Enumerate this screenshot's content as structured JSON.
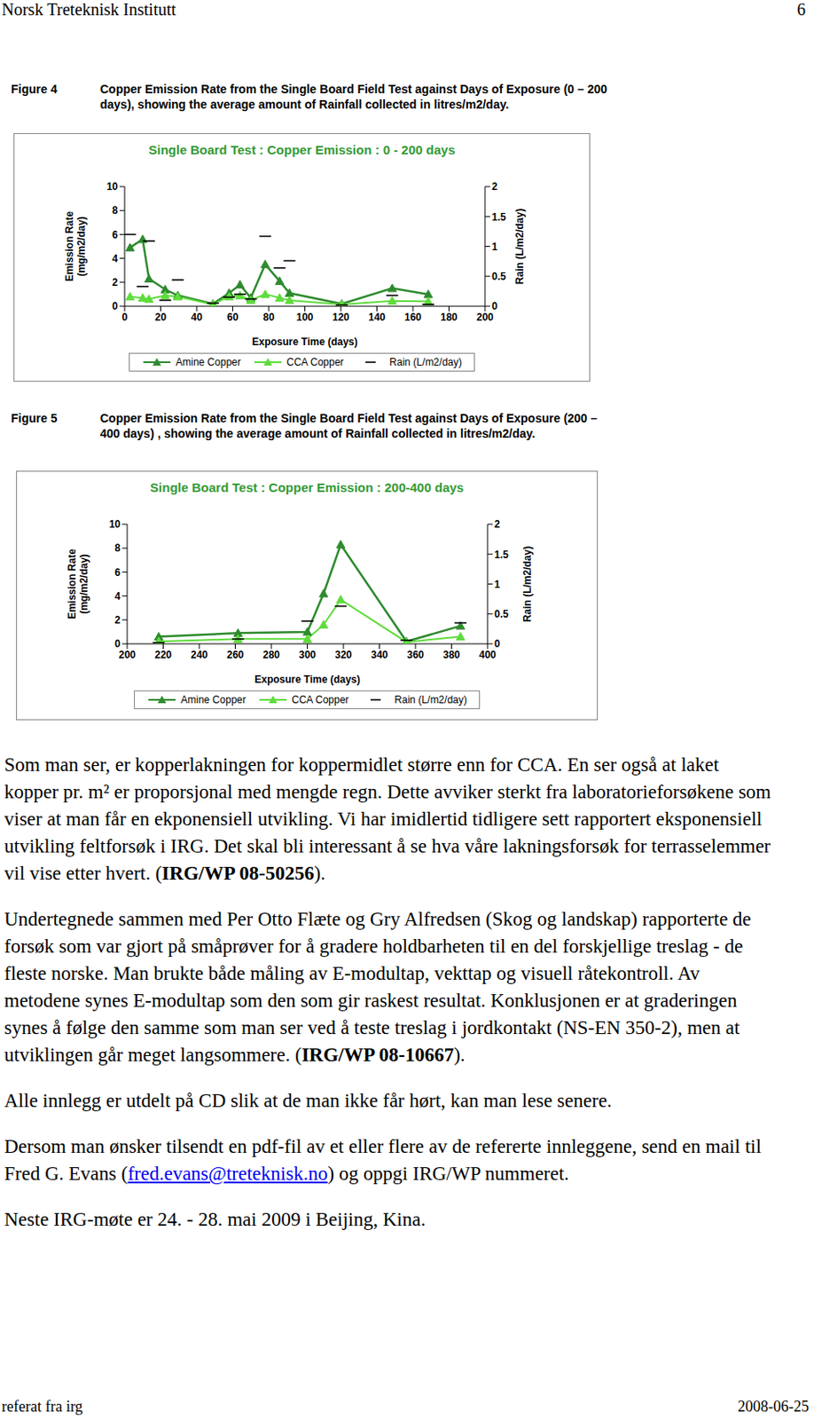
{
  "header": {
    "left": "Norsk Treteknisk Institutt",
    "right": "6"
  },
  "figures": [
    {
      "label": "Figure 4",
      "caption": "Copper Emission Rate from the Single Board Field Test against Days of Exposure (0 – 200 days), showing the average amount of Rainfall collected in litres/m2/day."
    },
    {
      "label": "Figure 5",
      "caption": "Copper Emission Rate from the Single Board Field Test against Days of Exposure (200 – 400 days) , showing the average amount of Rainfall collected in litres/m2/day."
    }
  ],
  "chart_data": [
    {
      "type": "line",
      "title": "Single Board Test : Copper Emission : 0 - 200 days",
      "x_label": "Exposure Time (days)",
      "y_label": "Emission Rate\n(mg/m2/day)",
      "y2_label": "Rain (L/m2/day)",
      "x": [
        3,
        10,
        13.5,
        22.5,
        29.5,
        49,
        58,
        64,
        70,
        78,
        86,
        91.5,
        120.5,
        148.5,
        168.5
      ],
      "series": [
        {
          "name": "Amine Copper",
          "color": "#2e8b2e",
          "values": [
            4.9,
            5.6,
            2.3,
            1.4,
            0.9,
            0.2,
            1.1,
            1.8,
            0.7,
            3.5,
            2.1,
            1.1,
            0.2,
            1.5,
            1.0
          ],
          "marker": "triangle",
          "line_style": "solid"
        },
        {
          "name": "CCA Copper",
          "color": "#5fdc3c",
          "values": [
            0.8,
            0.7,
            0.6,
            0.9,
            0.8,
            0.15,
            0.8,
            0.9,
            0.5,
            1.0,
            0.7,
            0.5,
            0.15,
            0.45,
            0.4
          ],
          "marker": "triangle",
          "line_style": "solid"
        },
        {
          "name": "Rain (L/m2/day)",
          "color": "#000000",
          "values": [
            1.2,
            0.33,
            1.09,
            0.1,
            0.44,
            0.05,
            0.15,
            0.2,
            0.12,
            1.17,
            0.64,
            0.76,
            0.02,
            0.18,
            0.03
          ],
          "axis": "y2",
          "type": "scatter",
          "marker": "dash"
        }
      ],
      "xlim": [
        0,
        200
      ],
      "xticks": [
        0,
        20,
        40,
        60,
        80,
        100,
        120,
        140,
        160,
        180,
        200
      ],
      "ylim": [
        0,
        10
      ],
      "yticks": [
        0,
        2,
        4,
        6,
        8,
        10
      ],
      "y2lim": [
        0,
        2
      ],
      "y2ticks": [
        0,
        0.5,
        1,
        1.5,
        2
      ],
      "grid": false,
      "legend": "bottom"
    },
    {
      "type": "line",
      "title": "Single Board Test : Copper Emission : 200-400 days",
      "x_label": "Exposure Time (days)",
      "y_label": "Emission Rate\n(mg/m2/day)",
      "y2_label": "Rain (L/m2/day)",
      "x": [
        217.5,
        261.5,
        300,
        309,
        318.5,
        355,
        385
      ],
      "series": [
        {
          "name": "Amine Copper",
          "color": "#2e8b2e",
          "values": [
            0.6,
            0.9,
            1.0,
            4.2,
            8.3,
            0.2,
            1.5
          ],
          "marker": "triangle",
          "line_style": "solid"
        },
        {
          "name": "CCA Copper",
          "color": "#5fdc3c",
          "values": [
            0.2,
            0.4,
            0.4,
            1.6,
            3.7,
            0.15,
            0.6
          ],
          "marker": "triangle",
          "line_style": "solid"
        },
        {
          "name": "Rain (L/m2/day)",
          "color": "#000000",
          "values": [
            0.02,
            0.08,
            0.38,
            null,
            0.63,
            0.06,
            0.35
          ],
          "axis": "y2",
          "type": "scatter",
          "marker": "dash"
        }
      ],
      "xlim": [
        200,
        400
      ],
      "xticks": [
        200,
        220,
        240,
        260,
        280,
        300,
        320,
        340,
        360,
        380,
        400
      ],
      "ylim": [
        0,
        10
      ],
      "yticks": [
        0,
        2,
        4,
        6,
        8,
        10
      ],
      "y2lim": [
        0,
        2
      ],
      "y2ticks": [
        0,
        0.5,
        1,
        1.5,
        2
      ],
      "grid": false,
      "legend": "bottom"
    }
  ],
  "paragraphs": [
    [
      {
        "text": "Som man ser, er kopperlakningen for koppermidlet større enn for CCA. En ser også at laket kopper pr. m² er proporsjonal med mengde regn. Dette avviker sterkt fra laboratorieforsøkene som viser at man får en ekponensiell utvikling. Vi har imidlertid tidligere sett rapportert eksponensiell utvikling feltforsøk i IRG. Det skal bli interessant å se hva våre lakningsforsøk for terrasselemmer vil vise etter hvert. ("
      },
      {
        "text": "IRG/WP 08-50256",
        "style": "bold"
      },
      {
        "text": ")."
      }
    ],
    [
      {
        "text": "Undertegnede sammen med Per Otto Flæte og Gry Alfredsen (Skog og landskap) rapporterte de forsøk som var gjort på småprøver for å gradere holdbarheten til en del forskjellige treslag - de fleste norske. Man brukte både måling av E-modultap, vekttap og visuell råtekontroll. Av metodene synes E-modultap som den som gir raskest resultat. Konklusjonen er at graderingen synes å følge den samme som man ser ved å teste treslag i jordkontakt (NS-EN 350-2), men at utviklingen går meget langsommere. ("
      },
      {
        "text": "IRG/WP 08-10667",
        "style": "bold"
      },
      {
        "text": ")."
      }
    ],
    [
      {
        "text": "Alle innlegg er utdelt på CD slik at de man ikke får hørt, kan man lese senere."
      }
    ],
    [
      {
        "text": "Dersom man ønsker tilsendt en pdf-fil av et eller flere av de refererte innleggene, send en mail til Fred G. Evans ("
      },
      {
        "text": "fred.evans@treteknisk.no",
        "style": "link"
      },
      {
        "text": ") og oppgi IRG/WP nummeret."
      }
    ],
    [
      {
        "text": "Neste IRG-møte er 24. - 28. mai 2009 i Beijing, Kina."
      }
    ]
  ],
  "footer": {
    "left": "referat fra irg",
    "right": "2008-06-25"
  }
}
